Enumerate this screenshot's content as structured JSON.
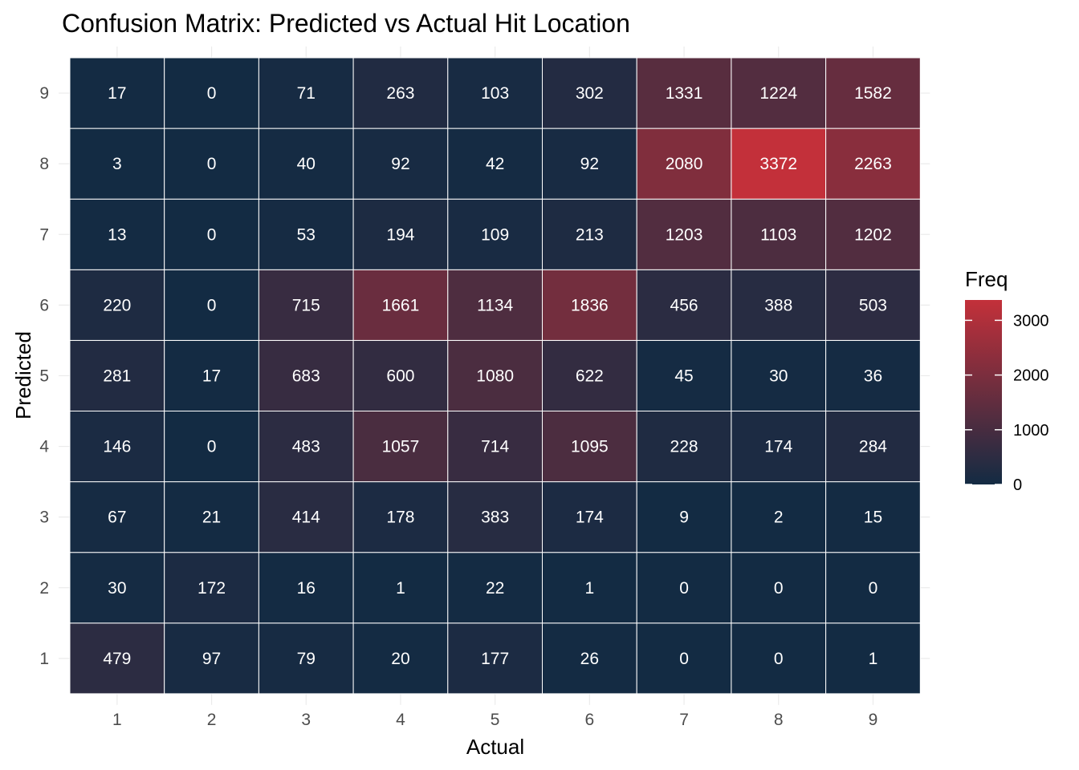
{
  "chart_data": {
    "type": "heatmap",
    "title": "Confusion Matrix: Predicted vs Actual Hit Location",
    "xlabel": "Actual",
    "ylabel": "Predicted",
    "x_categories": [
      "1",
      "2",
      "3",
      "4",
      "5",
      "6",
      "7",
      "8",
      "9"
    ],
    "y_categories": [
      "1",
      "2",
      "3",
      "4",
      "5",
      "6",
      "7",
      "8",
      "9"
    ],
    "values": [
      [
        479,
        97,
        79,
        20,
        177,
        26,
        0,
        0,
        1
      ],
      [
        30,
        172,
        16,
        1,
        22,
        1,
        0,
        0,
        0
      ],
      [
        67,
        21,
        414,
        178,
        383,
        174,
        9,
        2,
        15
      ],
      [
        146,
        0,
        483,
        1057,
        714,
        1095,
        228,
        174,
        284
      ],
      [
        281,
        17,
        683,
        600,
        1080,
        622,
        45,
        30,
        36
      ],
      [
        220,
        0,
        715,
        1661,
        1134,
        1836,
        456,
        388,
        503
      ],
      [
        13,
        0,
        53,
        194,
        109,
        213,
        1203,
        1103,
        1202
      ],
      [
        3,
        0,
        40,
        92,
        42,
        92,
        2080,
        3372,
        2263
      ],
      [
        17,
        0,
        71,
        263,
        103,
        302,
        1331,
        1224,
        1582
      ]
    ],
    "values_note_rows": "rows ordered by Predicted 1..9, columns by Actual 1..9",
    "color_scale": {
      "title": "Freq",
      "low_color": "#132b43",
      "high_color": "#c3303a",
      "limits": [
        0,
        3372
      ],
      "breaks": [
        0,
        1000,
        2000,
        3000
      ]
    },
    "grid": true,
    "legend_position": "right"
  }
}
